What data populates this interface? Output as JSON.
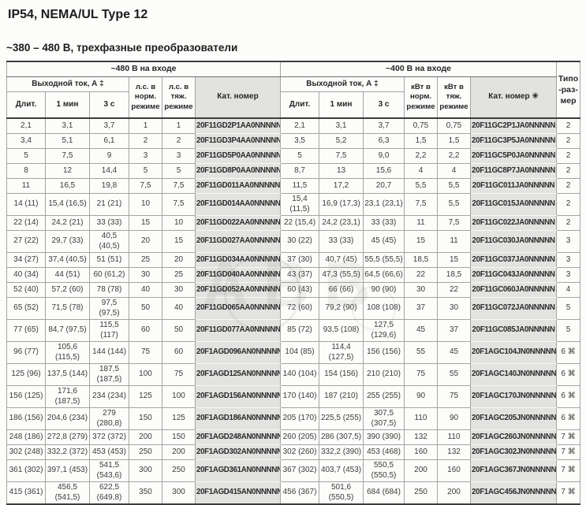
{
  "page": {
    "title": "IP54, NEMA/UL Type 12",
    "subtitle": "~380 – 480 В, трехфазные преобразователи"
  },
  "watermark": {
    "text": "АВВ"
  },
  "table": {
    "headers": {
      "group_480": "~480 В на входе",
      "group_400": "~400 В на входе",
      "output_current": "Выходной ток, А ‡",
      "cont": "Длит.",
      "min1": "1 мин",
      "sec3": "3 с",
      "hp_norm": "л.с. в норм. режиме",
      "hp_heavy": "л.с. в тяж. режиме",
      "cat_480": "Кат. номер",
      "kw_norm": "кВт в норм. режиме",
      "kw_heavy": "кВт в тяж. режиме",
      "cat_400": "Кат. номер ✳",
      "frame_size": "Типо-раз-мер"
    },
    "rows": [
      {
        "l": [
          "2,1",
          "3,1",
          "3,7",
          "1",
          "1",
          "20F11GD2P1AA0NNNNN"
        ],
        "r": [
          "2,1",
          "3,1",
          "3,7",
          "0,75",
          "0,75",
          "20F11GC2P1JA0NNNNN"
        ],
        "f": "2"
      },
      {
        "l": [
          "3,4",
          "5,1",
          "6,1",
          "2",
          "2",
          "20F11GD3P4AA0NNNNN"
        ],
        "r": [
          "3,5",
          "5,2",
          "6,3",
          "1,5",
          "1,5",
          "20F11GC3P5JA0NNNNN"
        ],
        "f": "2"
      },
      {
        "l": [
          "5",
          "7,5",
          "9",
          "3",
          "3",
          "20F11GD5P0AA0NNNNN"
        ],
        "r": [
          "5",
          "7,5",
          "9,0",
          "2,2",
          "2,2",
          "20F11GC5P0JA0NNNNN"
        ],
        "f": "2"
      },
      {
        "l": [
          "8",
          "12",
          "14,4",
          "5",
          "5",
          "20F11GD8P0AA0NNNNN"
        ],
        "r": [
          "8,7",
          "13",
          "15,6",
          "4",
          "4",
          "20F11GC8P7JA0NNNNN"
        ],
        "f": "2"
      },
      {
        "l": [
          "11",
          "16,5",
          "19,8",
          "7,5",
          "7,5",
          "20F11GD011AA0NNNNN"
        ],
        "r": [
          "11,5",
          "17,2",
          "20,7",
          "5,5",
          "5,5",
          "20F11GC011JA0NNNNN"
        ],
        "f": "2"
      },
      {
        "l": [
          "14 (11)",
          "15,4 (16,5)",
          "21 (21)",
          "10",
          "7,5",
          "20F11GD014AA0NNNNN"
        ],
        "r": [
          "15,4 (11,5)",
          "16,9 (17,3)",
          "23,1 (23,1)",
          "7,5",
          "5,5",
          "20F11GC015JA0NNNNN"
        ],
        "f": "2"
      },
      {
        "l": [
          "22 (14)",
          "24,2 (21)",
          "33 (33)",
          "15",
          "10",
          "20F11GD022AA0NNNNN"
        ],
        "r": [
          "22 (15,4)",
          "24,2 (23,1)",
          "33 (33)",
          "11",
          "7,5",
          "20F11GC022JA0NNNNN"
        ],
        "f": "2"
      },
      {
        "l": [
          "27 (22)",
          "29,7 (33)",
          "40,5 (40,5)",
          "20",
          "15",
          "20F11GD027AA0NNNNN"
        ],
        "r": [
          "30 (22)",
          "33 (33)",
          "45 (45)",
          "15",
          "11",
          "20F11GC030JA0NNNNN"
        ],
        "f": "3"
      },
      {
        "l": [
          "34 (27)",
          "37,4 (40,5)",
          "51 (51)",
          "25",
          "20",
          "20F11GD034AA0NNNNN"
        ],
        "r": [
          "37 (30)",
          "40,7 (45)",
          "55,5 (55,5)",
          "18,5",
          "15",
          "20F11GC037JA0NNNNN"
        ],
        "f": "3"
      },
      {
        "l": [
          "40 (34)",
          "44 (51)",
          "60 (61,2)",
          "30",
          "25",
          "20F11GD040AA0NNNNN"
        ],
        "r": [
          "43 (37)",
          "47,3 (55,5)",
          "64,5 (66,6)",
          "22",
          "18,5",
          "20F11GC043JA0NNNNN"
        ],
        "f": "3"
      },
      {
        "l": [
          "52 (40)",
          "57,2 (60)",
          "78 (78)",
          "40",
          "30",
          "20F11GD052AA0NNNNN"
        ],
        "r": [
          "60 (43)",
          "66 (66)",
          "90 (90)",
          "30",
          "22",
          "20F11GC060JA0NNNNN"
        ],
        "f": "4"
      },
      {
        "l": [
          "65 (52)",
          "71,5 (78)",
          "97,5 (97,5)",
          "50",
          "40",
          "20F11GD065AA0NNNNN"
        ],
        "r": [
          "72 (60)",
          "79,2 (90)",
          "108 (108)",
          "37",
          "30",
          "20F11GC072JA0NNNNN"
        ],
        "f": "5"
      },
      {
        "l": [
          "77 (65)",
          "84,7 (97,5)",
          "115,5 (117)",
          "60",
          "50",
          "20F11GD077AA0NNNNN"
        ],
        "r": [
          "85 (72)",
          "93,5 (108)",
          "127,5 (129,6)",
          "45",
          "37",
          "20F11GC085JA0NNNNN"
        ],
        "f": "5"
      },
      {
        "l": [
          "96 (77)",
          "105,6 (115,5)",
          "144 (144)",
          "75",
          "60",
          "20F1AGD096AN0NNNNN"
        ],
        "r": [
          "104 (85)",
          "114,4 (127,5)",
          "156 (156)",
          "55",
          "45",
          "20F1AGC104JN0NNNNN"
        ],
        "f": "6 ⌘"
      },
      {
        "l": [
          "125 (96)",
          "137,5 (144)",
          "187,5 (187,5)",
          "100",
          "75",
          "20F1AGD125AN0NNNNN"
        ],
        "r": [
          "140 (104)",
          "154 (156)",
          "210 (210)",
          "75",
          "55",
          "20F1AGC140JN0NNNNN"
        ],
        "f": "6 ⌘"
      },
      {
        "l": [
          "156 (125)",
          "171,6 (187,5)",
          "234 (234)",
          "125",
          "100",
          "20F1AGD156AN0NNNNN"
        ],
        "r": [
          "170 (140)",
          "187 (210)",
          "255 (255)",
          "90",
          "75",
          "20F1AGC170JN0NNNNN"
        ],
        "f": "6 ⌘"
      },
      {
        "l": [
          "186 (156)",
          "204,6 (234)",
          "279 (280,8)",
          "150",
          "125",
          "20F1AGD186AN0NNNNN"
        ],
        "r": [
          "205 (170)",
          "225,5 (255)",
          "307,5 (307,5)",
          "110",
          "90",
          "20F1AGC205JN0NNNNN"
        ],
        "f": "6 ⌘"
      },
      {
        "l": [
          "248 (186)",
          "272,8 (279)",
          "372 (372)",
          "200",
          "150",
          "20F1AGD248AN0NNNNN"
        ],
        "r": [
          "260 (205)",
          "286 (307,5)",
          "390 (390)",
          "132",
          "110",
          "20F1AGC260JN0NNNNN"
        ],
        "f": "7 ⌘"
      },
      {
        "l": [
          "302 (248)",
          "332,2 (372)",
          "453 (453)",
          "250",
          "200",
          "20F1AGD302AN0NNNNN"
        ],
        "r": [
          "302 (260)",
          "332,2 (390)",
          "453 (468)",
          "160",
          "132",
          "20F1AGC302JN0NNNNN"
        ],
        "f": "7 ⌘"
      },
      {
        "l": [
          "361 (302)",
          "397,1 (453)",
          "541,5 (543,6)",
          "300",
          "250",
          "20F1AGD361AN0NNNNN"
        ],
        "r": [
          "367 (302)",
          "403,7 (453)",
          "550,5 (550,5)",
          "200",
          "160",
          "20F1AGC367JN0NNNNN"
        ],
        "f": "7 ⌘"
      },
      {
        "l": [
          "415 (361)",
          "456,5 (541,5)",
          "622,5 (649,8)",
          "350",
          "300",
          "20F1AGD415AN0NNNNN"
        ],
        "r": [
          "456 (367)",
          "501,6 (550,5)",
          "684 (684)",
          "250",
          "200",
          "20F1AGC456JN0NNNNN"
        ],
        "f": "7 ⌘"
      }
    ]
  }
}
